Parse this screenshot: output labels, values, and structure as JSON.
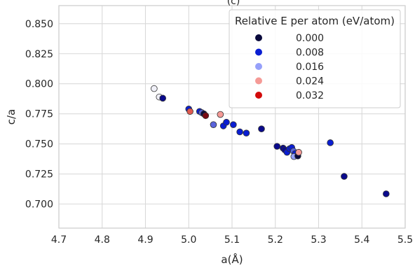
{
  "chart_data": {
    "type": "scatter",
    "top_label": "(c)",
    "xlabel": "a(Å)",
    "ylabel": "c/a",
    "xlim": [
      4.7,
      5.5
    ],
    "ylim": [
      0.68,
      0.865
    ],
    "xticks": [
      "4.7",
      "4.8",
      "4.9",
      "5.0",
      "5.1",
      "5.2",
      "5.3",
      "5.4",
      "5.5"
    ],
    "yticks": [
      "0.700",
      "0.725",
      "0.750",
      "0.775",
      "0.800",
      "0.825",
      "0.850"
    ],
    "grid": true,
    "legend": {
      "title": "Relative E per atom (eV/atom)",
      "placement": "top-right",
      "entries": [
        {
          "label": "0.000",
          "color": "#0a0a3c"
        },
        {
          "label": "0.008",
          "color": "#0a1ed2"
        },
        {
          "label": "0.016",
          "color": "#96a0fa"
        },
        {
          "label": "0.024",
          "color": "#f59a96"
        },
        {
          "label": "0.032",
          "color": "#d20a0a"
        }
      ]
    },
    "colormap": [
      {
        "e": 0.0,
        "color": "#0a0a3c"
      },
      {
        "e": 0.004,
        "color": "#0a0a8c"
      },
      {
        "e": 0.008,
        "color": "#0a1ed2"
      },
      {
        "e": 0.012,
        "color": "#5a64dc"
      },
      {
        "e": 0.016,
        "color": "#96a0fa"
      },
      {
        "e": 0.02,
        "color": "#f0f0f8"
      },
      {
        "e": 0.024,
        "color": "#f59a96"
      },
      {
        "e": 0.028,
        "color": "#e05a50"
      },
      {
        "e": 0.032,
        "color": "#d20a0a"
      },
      {
        "e": 0.036,
        "color": "#780a14"
      }
    ],
    "points": [
      {
        "x": 4.92,
        "y": 0.796,
        "e": 0.02
      },
      {
        "x": 4.932,
        "y": 0.789,
        "e": 0.02
      },
      {
        "x": 4.94,
        "y": 0.788,
        "e": 0.004
      },
      {
        "x": 5.0,
        "y": 0.779,
        "e": 0.008
      },
      {
        "x": 5.003,
        "y": 0.777,
        "e": 0.028
      },
      {
        "x": 5.025,
        "y": 0.777,
        "e": 0.008
      },
      {
        "x": 5.03,
        "y": 0.776,
        "e": 0.012
      },
      {
        "x": 5.035,
        "y": 0.775,
        "e": 0.0
      },
      {
        "x": 5.039,
        "y": 0.7735,
        "e": 0.036
      },
      {
        "x": 5.073,
        "y": 0.7745,
        "e": 0.024
      },
      {
        "x": 5.057,
        "y": 0.766,
        "e": 0.012
      },
      {
        "x": 5.08,
        "y": 0.765,
        "e": 0.008
      },
      {
        "x": 5.087,
        "y": 0.768,
        "e": 0.008
      },
      {
        "x": 5.103,
        "y": 0.766,
        "e": 0.008
      },
      {
        "x": 5.118,
        "y": 0.76,
        "e": 0.008
      },
      {
        "x": 5.133,
        "y": 0.759,
        "e": 0.008
      },
      {
        "x": 5.168,
        "y": 0.7625,
        "e": 0.004
      },
      {
        "x": 5.204,
        "y": 0.748,
        "e": 0.004
      },
      {
        "x": 5.218,
        "y": 0.7465,
        "e": 0.004
      },
      {
        "x": 5.222,
        "y": 0.745,
        "e": 0.004
      },
      {
        "x": 5.227,
        "y": 0.743,
        "e": 0.008
      },
      {
        "x": 5.233,
        "y": 0.746,
        "e": 0.008
      },
      {
        "x": 5.238,
        "y": 0.747,
        "e": 0.008
      },
      {
        "x": 5.242,
        "y": 0.744,
        "e": 0.012
      },
      {
        "x": 5.246,
        "y": 0.742,
        "e": 0.008
      },
      {
        "x": 5.243,
        "y": 0.7395,
        "e": 0.016
      },
      {
        "x": 5.252,
        "y": 0.74,
        "e": 0.0
      },
      {
        "x": 5.254,
        "y": 0.743,
        "e": 0.024
      },
      {
        "x": 5.327,
        "y": 0.751,
        "e": 0.008
      },
      {
        "x": 5.359,
        "y": 0.723,
        "e": 0.004
      },
      {
        "x": 5.456,
        "y": 0.7085,
        "e": 0.004
      }
    ]
  }
}
